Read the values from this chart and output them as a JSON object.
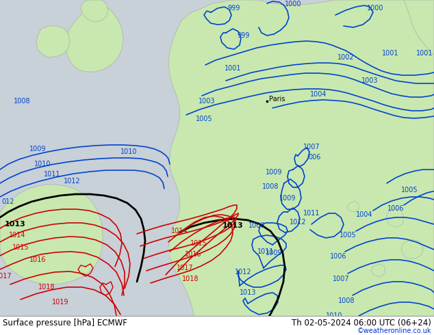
{
  "title_left": "Surface pressure [hPa] ECMWF",
  "title_right": "Th 02-05-2024 06:00 UTC (06+24)",
  "copyright": "©weatheronline.co.uk",
  "sea_color": "#c8d0d8",
  "land_color": "#c8e8b0",
  "border_color": "#b0b8a8",
  "blue": "#0044cc",
  "red": "#cc0000",
  "black": "#000000",
  "figsize": [
    6.34,
    4.9
  ],
  "dpi": 100
}
